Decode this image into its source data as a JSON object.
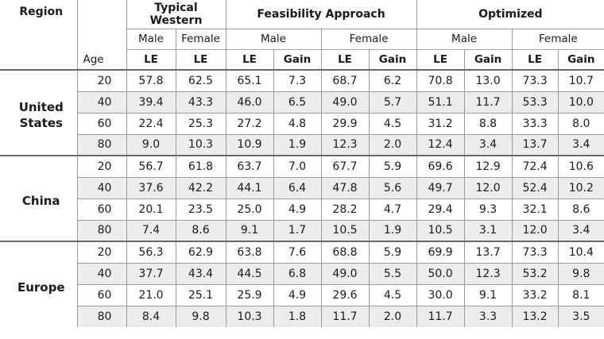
{
  "header": {
    "region_label": "Region",
    "age_label": "Age",
    "groups": [
      "Typical Western",
      "Feasibility Approach",
      "Optimized"
    ],
    "sex": {
      "male": "Male",
      "female": "Female"
    },
    "col_le": "LE",
    "col_gain": "Gain"
  },
  "regions": [
    {
      "name_line1": "United",
      "name_line2": "States",
      "rows": [
        {
          "age": "20",
          "tw_m": "57.8",
          "tw_f": "62.5",
          "fa_m_le": "65.1",
          "fa_m_gain": "7.3",
          "fa_f_le": "68.7",
          "fa_f_gain": "6.2",
          "op_m_le": "70.8",
          "op_m_gain": "13.0",
          "op_f_le": "73.3",
          "op_f_gain": "10.7"
        },
        {
          "age": "40",
          "tw_m": "39.4",
          "tw_f": "43.3",
          "fa_m_le": "46.0",
          "fa_m_gain": "6.5",
          "fa_f_le": "49.0",
          "fa_f_gain": "5.7",
          "op_m_le": "51.1",
          "op_m_gain": "11.7",
          "op_f_le": "53.3",
          "op_f_gain": "10.0"
        },
        {
          "age": "60",
          "tw_m": "22.4",
          "tw_f": "25.3",
          "fa_m_le": "27.2",
          "fa_m_gain": "4.8",
          "fa_f_le": "29.9",
          "fa_f_gain": "4.5",
          "op_m_le": "31.2",
          "op_m_gain": "8.8",
          "op_f_le": "33.3",
          "op_f_gain": "8.0"
        },
        {
          "age": "80",
          "tw_m": "9.0",
          "tw_f": "10.3",
          "fa_m_le": "10.9",
          "fa_m_gain": "1.9",
          "fa_f_le": "12.3",
          "fa_f_gain": "2.0",
          "op_m_le": "12.4",
          "op_m_gain": "3.4",
          "op_f_le": "13.7",
          "op_f_gain": "3.4"
        }
      ]
    },
    {
      "name_line1": "China",
      "name_line2": "",
      "rows": [
        {
          "age": "20",
          "tw_m": "56.7",
          "tw_f": "61.8",
          "fa_m_le": "63.7",
          "fa_m_gain": "7.0",
          "fa_f_le": "67.7",
          "fa_f_gain": "5.9",
          "op_m_le": "69.6",
          "op_m_gain": "12.9",
          "op_f_le": "72.4",
          "op_f_gain": "10.6"
        },
        {
          "age": "40",
          "tw_m": "37.6",
          "tw_f": "42.2",
          "fa_m_le": "44.1",
          "fa_m_gain": "6.4",
          "fa_f_le": "47.8",
          "fa_f_gain": "5.6",
          "op_m_le": "49.7",
          "op_m_gain": "12.0",
          "op_f_le": "52.4",
          "op_f_gain": "10.2"
        },
        {
          "age": "60",
          "tw_m": "20.1",
          "tw_f": "23.5",
          "fa_m_le": "25.0",
          "fa_m_gain": "4.9",
          "fa_f_le": "28.2",
          "fa_f_gain": "4.7",
          "op_m_le": "29.4",
          "op_m_gain": "9.3",
          "op_f_le": "32.1",
          "op_f_gain": "8.6"
        },
        {
          "age": "80",
          "tw_m": "7.4",
          "tw_f": "8.6",
          "fa_m_le": "9.1",
          "fa_m_gain": "1.7",
          "fa_f_le": "10.5",
          "fa_f_gain": "1.9",
          "op_m_le": "10.5",
          "op_m_gain": "3.1",
          "op_f_le": "12.0",
          "op_f_gain": "3.4"
        }
      ]
    },
    {
      "name_line1": "Europe",
      "name_line2": "",
      "rows": [
        {
          "age": "20",
          "tw_m": "56.3",
          "tw_f": "62.9",
          "fa_m_le": "63.8",
          "fa_m_gain": "7.6",
          "fa_f_le": "68.8",
          "fa_f_gain": "5.9",
          "op_m_le": "69.9",
          "op_m_gain": "13.7",
          "op_f_le": "73.3",
          "op_f_gain": "10.4"
        },
        {
          "age": "40",
          "tw_m": "37.7",
          "tw_f": "43.4",
          "fa_m_le": "44.5",
          "fa_m_gain": "6.8",
          "fa_f_le": "49.0",
          "fa_f_gain": "5.5",
          "op_m_le": "50.0",
          "op_m_gain": "12.3",
          "op_f_le": "53.2",
          "op_f_gain": "9.8"
        },
        {
          "age": "60",
          "tw_m": "21.0",
          "tw_f": "25.1",
          "fa_m_le": "25.9",
          "fa_m_gain": "4.9",
          "fa_f_le": "29.6",
          "fa_f_gain": "4.5",
          "op_m_le": "30.0",
          "op_m_gain": "9.1",
          "op_f_le": "33.2",
          "op_f_gain": "8.1"
        },
        {
          "age": "80",
          "tw_m": "8.4",
          "tw_f": "9.8",
          "fa_m_le": "10.3",
          "fa_m_gain": "1.8",
          "fa_f_le": "11.7",
          "fa_f_gain": "2.0",
          "op_m_le": "11.7",
          "op_m_gain": "3.3",
          "op_f_le": "13.2",
          "op_f_gain": "3.5"
        }
      ]
    }
  ]
}
